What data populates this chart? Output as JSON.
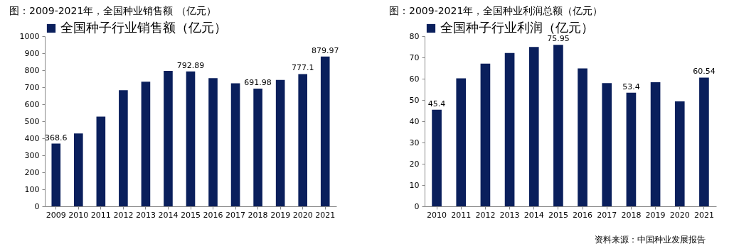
{
  "chart_data": [
    {
      "type": "bar",
      "title": "图：2009-2021年，全国种业销售额 （亿元）",
      "categories": [
        "2009",
        "2010",
        "2011",
        "2012",
        "2013",
        "2014",
        "2015",
        "2016",
        "2017",
        "2018",
        "2019",
        "2020",
        "2021"
      ],
      "series": [
        {
          "name": "全国种子行业销售额（亿元）",
          "color": "#0a1f5c",
          "values": [
            368.6,
            428,
            527,
            682,
            732,
            796,
            792.89,
            753,
            723,
            691.98,
            743,
            777.1,
            879.97
          ],
          "value_labels": [
            "368.6",
            null,
            null,
            null,
            null,
            null,
            "792.89",
            null,
            null,
            "691.98",
            null,
            "777.1",
            "879.97"
          ]
        }
      ],
      "ylim": [
        0,
        1000
      ],
      "yticks": [
        0,
        100,
        200,
        300,
        400,
        500,
        600,
        700,
        800,
        900,
        1000
      ],
      "legend": "top",
      "grid": false
    },
    {
      "type": "bar",
      "title": "图：2009-2021年，全国种业利润总额（亿元）",
      "categories": [
        "2010",
        "2011",
        "2012",
        "2013",
        "2014",
        "2015",
        "2016",
        "2017",
        "2018",
        "2019",
        "2020",
        "2021"
      ],
      "series": [
        {
          "name": "全国种子行业利润（亿元）",
          "color": "#0a1f5c",
          "values": [
            45.4,
            60.2,
            67.1,
            72.1,
            74.9,
            75.95,
            64.8,
            57.9,
            53.4,
            58.3,
            49.3,
            60.54
          ],
          "value_labels": [
            "45.4",
            null,
            null,
            null,
            null,
            "75.95",
            null,
            null,
            "53.4",
            null,
            null,
            "60.54"
          ]
        }
      ],
      "ylim": [
        0,
        80
      ],
      "yticks": [
        0,
        10,
        20,
        30,
        40,
        50,
        60,
        70,
        80
      ],
      "legend": "top",
      "grid": false,
      "annotations": [
        "资料来源：中国种业发展报告"
      ]
    }
  ]
}
